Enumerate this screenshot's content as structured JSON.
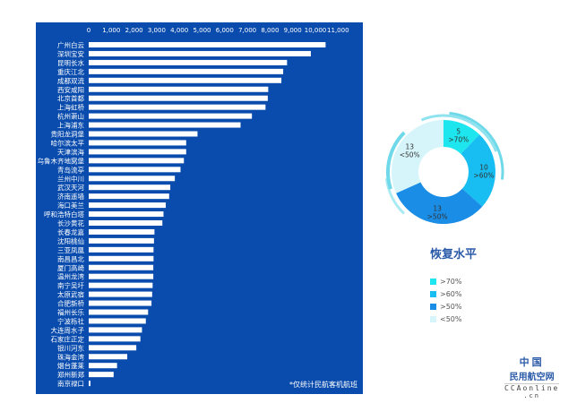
{
  "chart_data": [
    {
      "type": "bar",
      "orientation": "horizontal",
      "categories": [
        "广州白云",
        "深圳宝安",
        "昆明长水",
        "重庆江北",
        "成都双流",
        "西安咸阳",
        "北京首都",
        "上海虹桥",
        "杭州萧山",
        "上海浦东",
        "贵阳龙洞堡",
        "哈尔滨太平",
        "天津滨海",
        "乌鲁木齐地窝堡",
        "青岛流亭",
        "兰州中川",
        "武汉天河",
        "济南遥墙",
        "海口美兰",
        "呼和浩特白塔",
        "长沙黄花",
        "长春龙嘉",
        "沈阳桃仙",
        "三亚凤凰",
        "南昌昌北",
        "厦门高崎",
        "温州龙湾",
        "南宁吴圩",
        "太原武宿",
        "合肥新桥",
        "福州长乐",
        "宁波栎社",
        "大连周水子",
        "石家庄正定",
        "银川河东",
        "珠海金湾",
        "烟台蓬莱",
        "郑州新郑",
        "南京禄口"
      ],
      "values": [
        10450,
        9800,
        8750,
        8580,
        8500,
        7920,
        7900,
        7800,
        7200,
        6700,
        4800,
        4300,
        4300,
        4200,
        4050,
        3800,
        3600,
        3550,
        3400,
        3300,
        3250,
        2900,
        2880,
        2860,
        2860,
        2850,
        2850,
        2820,
        2800,
        2770,
        2620,
        2520,
        2350,
        2280,
        2100,
        1700,
        1250,
        1100,
        60
      ],
      "xticks": [
        "0",
        "1,000",
        "2,000",
        "3,000",
        "4,000",
        "5,000",
        "6,000",
        "7,000",
        "8,000",
        "9,000",
        "10,000",
        "11,000"
      ],
      "xlim": [
        0,
        11000
      ],
      "note": "*仅统计民航客机航班",
      "color": "#ffffff"
    },
    {
      "type": "pie",
      "donut": true,
      "title": "恢复水平",
      "slices": [
        {
          "label": ">70%",
          "value": 5,
          "color": "#1ee6ee"
        },
        {
          "label": ">60%",
          "value": 10,
          "color": "#18bdf2"
        },
        {
          "label": ">50%",
          "value": 13,
          "color": "#1a8de6"
        },
        {
          "label": "<50%",
          "value": 13,
          "color": "#d6f5fb"
        }
      ],
      "legend": "bottom"
    }
  ],
  "logo": {
    "line1": "中国",
    "line2": "民用航空网",
    "line3": "CCAonline",
    ".cn": ".cn"
  }
}
